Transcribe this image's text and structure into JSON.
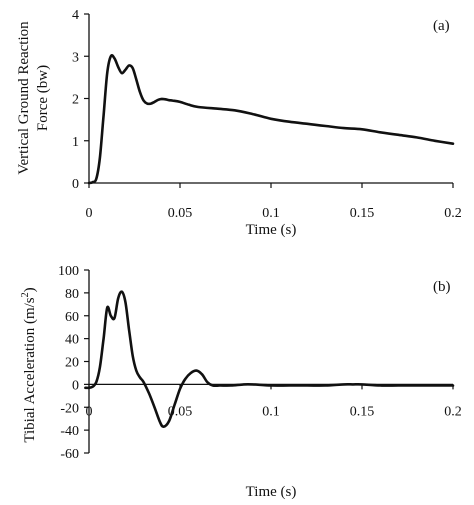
{
  "chart_data": [
    {
      "type": "line",
      "panel_label": "(a)",
      "xlabel": "Time (s)",
      "ylabel_lines": [
        "Vertical Ground Reaction",
        "Force (bw)"
      ],
      "xlim": [
        0,
        0.2
      ],
      "ylim": [
        0,
        4
      ],
      "xticks": [
        0,
        0.05,
        0.1,
        0.15,
        0.2
      ],
      "xtick_labels": [
        "0",
        "0.05",
        "0.1",
        "0.15",
        "0.2"
      ],
      "yticks": [
        0,
        1,
        2,
        3,
        4
      ],
      "ytick_labels": [
        "0",
        "1",
        "2",
        "3",
        "4"
      ],
      "grid": false,
      "series": [
        {
          "x": [
            0,
            0.002,
            0.004,
            0.006,
            0.008,
            0.01,
            0.012,
            0.014,
            0.016,
            0.018,
            0.02,
            0.022,
            0.024,
            0.026,
            0.028,
            0.03,
            0.032,
            0.034,
            0.036,
            0.038,
            0.04,
            0.042,
            0.044,
            0.046,
            0.05,
            0.055,
            0.06,
            0.07,
            0.08,
            0.09,
            0.1,
            0.11,
            0.12,
            0.13,
            0.14,
            0.15,
            0.16,
            0.17,
            0.18,
            0.19,
            0.2
          ],
          "values": [
            0,
            0.02,
            0.1,
            0.6,
            1.6,
            2.6,
            3.0,
            2.95,
            2.75,
            2.6,
            2.68,
            2.78,
            2.72,
            2.45,
            2.15,
            1.95,
            1.88,
            1.88,
            1.92,
            1.97,
            1.99,
            1.98,
            1.96,
            1.95,
            1.92,
            1.85,
            1.8,
            1.76,
            1.72,
            1.63,
            1.52,
            1.45,
            1.4,
            1.35,
            1.3,
            1.27,
            1.2,
            1.14,
            1.08,
            1.0,
            0.93
          ]
        }
      ]
    },
    {
      "type": "line",
      "panel_label": "(b)",
      "xlabel": "Time (s)",
      "ylabel_text": "Tibial Acceleration (m/s",
      "ylabel_sup": "2",
      "ylabel_close": ")",
      "xlim": [
        0,
        0.2
      ],
      "ylim": [
        -60,
        100
      ],
      "xticks": [
        0,
        0.05,
        0.1,
        0.15,
        0.2
      ],
      "xtick_labels": [
        "0",
        "0.05",
        "0.1",
        "0.15",
        "0.2"
      ],
      "yticks": [
        -60,
        -40,
        -20,
        0,
        20,
        40,
        60,
        80,
        100
      ],
      "ytick_labels": [
        "-60",
        "-40",
        "-20",
        "0",
        "20",
        "40",
        "60",
        "80",
        "100"
      ],
      "grid": false,
      "series": [
        {
          "x": [
            -0.002,
            0.0,
            0.002,
            0.004,
            0.006,
            0.008,
            0.01,
            0.012,
            0.014,
            0.016,
            0.018,
            0.02,
            0.022,
            0.024,
            0.026,
            0.028,
            0.03,
            0.033,
            0.036,
            0.039,
            0.041,
            0.044,
            0.047,
            0.05,
            0.053,
            0.056,
            0.059,
            0.062,
            0.065,
            0.068,
            0.072,
            0.078,
            0.085,
            0.09,
            0.1,
            0.11,
            0.12,
            0.13,
            0.14,
            0.145,
            0.15,
            0.16,
            0.17,
            0.18,
            0.19,
            0.2
          ],
          "values": [
            -3,
            -3,
            -2,
            2,
            15,
            40,
            67,
            60,
            58,
            75,
            81,
            72,
            48,
            25,
            12,
            6,
            2,
            -8,
            -20,
            -33,
            -37,
            -32,
            -18,
            -4,
            5,
            10,
            12,
            9,
            2,
            -1,
            -1,
            -1,
            0,
            0,
            -1,
            -1,
            -1,
            -1,
            0,
            0,
            0,
            -1,
            -1,
            -1,
            -1,
            -1
          ]
        }
      ]
    }
  ]
}
